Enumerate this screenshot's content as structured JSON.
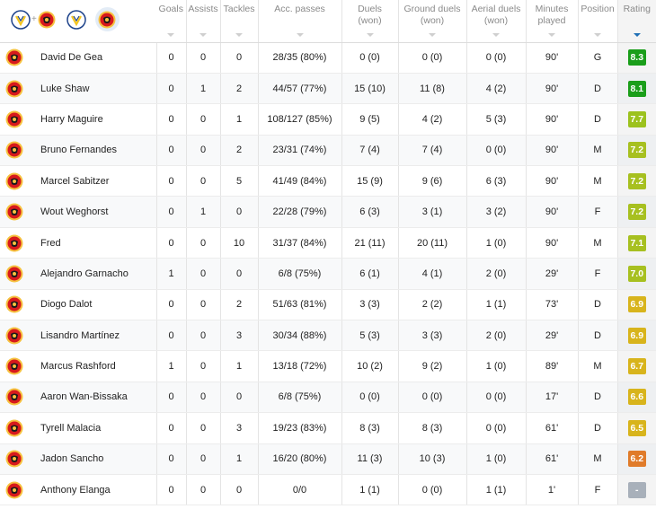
{
  "columns": {
    "goals": "Goals",
    "assists": "Assists",
    "tackles": "Tackles",
    "passes": "Acc. passes",
    "duels": "Duels\n(won)",
    "ground": "Ground duels\n(won)",
    "aerial": "Aerial duels\n(won)",
    "minutes": "Minutes\nplayed",
    "position": "Position",
    "rating": "Rating"
  },
  "team_filter": {
    "plus": "+"
  },
  "rating_colors": {
    "dark_green": "#1a9e1a",
    "green": "#65b32e",
    "yellow_green": "#a7c020",
    "yellow": "#d8b41c",
    "orange": "#e07b2a",
    "none": "#a8b0ba"
  },
  "players": [
    {
      "name": "David De Gea",
      "goals": "0",
      "assists": "0",
      "tackles": "0",
      "passes": "28/35 (80%)",
      "duels": "0 (0)",
      "ground": "0 (0)",
      "aerial": "0 (0)",
      "minutes": "90'",
      "position": "G",
      "rating": "8.3",
      "rating_color": "#1a9e1a"
    },
    {
      "name": "Luke Shaw",
      "goals": "0",
      "assists": "1",
      "tackles": "2",
      "passes": "44/57 (77%)",
      "duels": "15 (10)",
      "ground": "11 (8)",
      "aerial": "4 (2)",
      "minutes": "90'",
      "position": "D",
      "rating": "8.1",
      "rating_color": "#1a9e1a"
    },
    {
      "name": "Harry Maguire",
      "goals": "0",
      "assists": "0",
      "tackles": "1",
      "passes": "108/127 (85%)",
      "duels": "9 (5)",
      "ground": "4 (2)",
      "aerial": "5 (3)",
      "minutes": "90'",
      "position": "D",
      "rating": "7.7",
      "rating_color": "#9cc21e"
    },
    {
      "name": "Bruno Fernandes",
      "goals": "0",
      "assists": "0",
      "tackles": "2",
      "passes": "23/31 (74%)",
      "duels": "7 (4)",
      "ground": "7 (4)",
      "aerial": "0 (0)",
      "minutes": "90'",
      "position": "M",
      "rating": "7.2",
      "rating_color": "#a7c020"
    },
    {
      "name": "Marcel Sabitzer",
      "goals": "0",
      "assists": "0",
      "tackles": "5",
      "passes": "41/49 (84%)",
      "duels": "15 (9)",
      "ground": "9 (6)",
      "aerial": "6 (3)",
      "minutes": "90'",
      "position": "M",
      "rating": "7.2",
      "rating_color": "#a7c020"
    },
    {
      "name": "Wout Weghorst",
      "goals": "0",
      "assists": "1",
      "tackles": "0",
      "passes": "22/28 (79%)",
      "duels": "6 (3)",
      "ground": "3 (1)",
      "aerial": "3 (2)",
      "minutes": "90'",
      "position": "F",
      "rating": "7.2",
      "rating_color": "#a7c020"
    },
    {
      "name": "Fred",
      "goals": "0",
      "assists": "0",
      "tackles": "10",
      "passes": "31/37 (84%)",
      "duels": "21 (11)",
      "ground": "20 (11)",
      "aerial": "1 (0)",
      "minutes": "90'",
      "position": "M",
      "rating": "7.1",
      "rating_color": "#a7c020"
    },
    {
      "name": "Alejandro Garnacho",
      "goals": "1",
      "assists": "0",
      "tackles": "0",
      "passes": "6/8 (75%)",
      "duels": "6 (1)",
      "ground": "4 (1)",
      "aerial": "2 (0)",
      "minutes": "29'",
      "position": "F",
      "rating": "7.0",
      "rating_color": "#a7c020"
    },
    {
      "name": "Diogo Dalot",
      "goals": "0",
      "assists": "0",
      "tackles": "2",
      "passes": "51/63 (81%)",
      "duels": "3 (3)",
      "ground": "2 (2)",
      "aerial": "1 (1)",
      "minutes": "73'",
      "position": "D",
      "rating": "6.9",
      "rating_color": "#d8b41c"
    },
    {
      "name": "Lisandro Martínez",
      "goals": "0",
      "assists": "0",
      "tackles": "3",
      "passes": "30/34 (88%)",
      "duels": "5 (3)",
      "ground": "3 (3)",
      "aerial": "2 (0)",
      "minutes": "29'",
      "position": "D",
      "rating": "6.9",
      "rating_color": "#d8b41c"
    },
    {
      "name": "Marcus Rashford",
      "goals": "1",
      "assists": "0",
      "tackles": "1",
      "passes": "13/18 (72%)",
      "duels": "10 (2)",
      "ground": "9 (2)",
      "aerial": "1 (0)",
      "minutes": "89'",
      "position": "M",
      "rating": "6.7",
      "rating_color": "#d8b41c"
    },
    {
      "name": "Aaron Wan-Bissaka",
      "goals": "0",
      "assists": "0",
      "tackles": "0",
      "passes": "6/8 (75%)",
      "duels": "0 (0)",
      "ground": "0 (0)",
      "aerial": "0 (0)",
      "minutes": "17'",
      "position": "D",
      "rating": "6.6",
      "rating_color": "#d8b41c"
    },
    {
      "name": "Tyrell Malacia",
      "goals": "0",
      "assists": "0",
      "tackles": "3",
      "passes": "19/23 (83%)",
      "duels": "8 (3)",
      "ground": "8 (3)",
      "aerial": "0 (0)",
      "minutes": "61'",
      "position": "D",
      "rating": "6.5",
      "rating_color": "#d8b41c"
    },
    {
      "name": "Jadon Sancho",
      "goals": "0",
      "assists": "0",
      "tackles": "1",
      "passes": "16/20 (80%)",
      "duels": "11 (3)",
      "ground": "10 (3)",
      "aerial": "1 (0)",
      "minutes": "61'",
      "position": "M",
      "rating": "6.2",
      "rating_color": "#e07b2a"
    },
    {
      "name": "Anthony Elanga",
      "goals": "0",
      "assists": "0",
      "tackles": "0",
      "passes": "0/0",
      "duels": "1 (1)",
      "ground": "0 (0)",
      "aerial": "1 (1)",
      "minutes": "1'",
      "position": "F",
      "rating": "-",
      "rating_color": "#a8b0ba"
    }
  ]
}
